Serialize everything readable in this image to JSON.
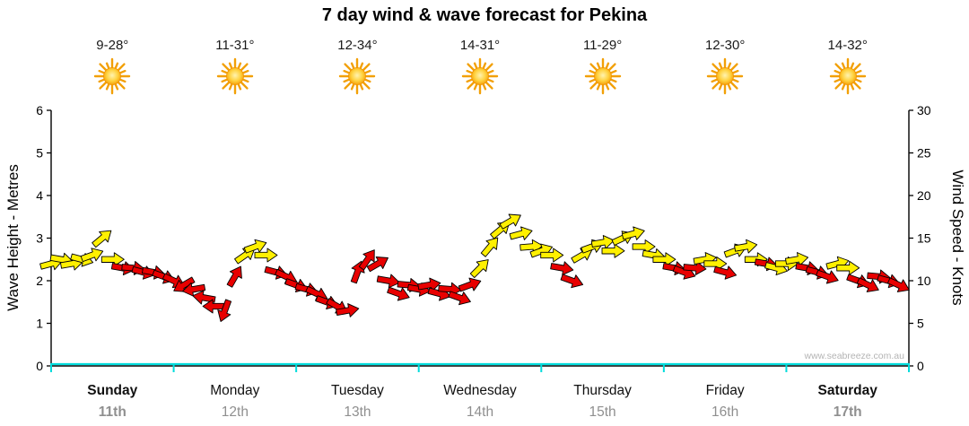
{
  "title": "7 day wind & wave forecast for Pekina",
  "watermark": "www.seabreeze.com.au",
  "days": [
    {
      "name": "Sunday",
      "date": "11th",
      "temp": "9-28°",
      "weekend": true
    },
    {
      "name": "Monday",
      "date": "12th",
      "temp": "11-31°",
      "weekend": false
    },
    {
      "name": "Tuesday",
      "date": "13th",
      "temp": "12-34°",
      "weekend": false
    },
    {
      "name": "Wednesday",
      "date": "14th",
      "temp": "14-31°",
      "weekend": false
    },
    {
      "name": "Thursday",
      "date": "15th",
      "temp": "11-29°",
      "weekend": false
    },
    {
      "name": "Friday",
      "date": "16th",
      "temp": "12-30°",
      "weekend": false
    },
    {
      "name": "Saturday",
      "date": "17th",
      "temp": "14-32°",
      "weekend": true
    }
  ],
  "colors": {
    "arrow_yellow": "#FFF000",
    "arrow_red": "#E80000",
    "arrow_outline": "#000000",
    "wave_line": "#00DCDC",
    "axis": "#000000",
    "date_text": "#8f8f8f",
    "watermark": "#b4b4b4",
    "sun_core": "#FFF3B0",
    "sun_mid": "#FFD23F",
    "sun_edge": "#F29400",
    "sun_ray": "#F2A007"
  },
  "chart_data": {
    "type": "scatter",
    "title": "7 day wind & wave forecast for Pekina",
    "subtitle": "wind arrows plotted against knots axis; colour = wind category (yellow/red); arrow rotation = wind direction",
    "left_axis": {
      "label": "Wave Height - Metres",
      "min": 0,
      "max": 6,
      "ticks": [
        0,
        1,
        2,
        3,
        4,
        5,
        6
      ]
    },
    "right_axis": {
      "label": "Wind Speed - Knots",
      "min": 0,
      "max": 30,
      "ticks": [
        0,
        5,
        10,
        15,
        20,
        25,
        30
      ]
    },
    "x_axis": {
      "unit": "hours",
      "range": [
        0,
        168
      ],
      "step_hours": 2,
      "day_labels": [
        "Sunday 11th",
        "Monday 12th",
        "Tuesday 13th",
        "Wednesday 14th",
        "Thursday 15th",
        "Friday 16th",
        "Saturday 17th"
      ]
    },
    "wave_height_m": 0,
    "grid": false,
    "legend": "none",
    "wind_points_format": [
      "t_hours",
      "knots",
      "dir_deg_cw_from_east",
      "color_y_or_r"
    ],
    "wind_points": [
      [
        0,
        12,
        -15,
        "y"
      ],
      [
        2,
        12.5,
        10,
        "y"
      ],
      [
        4,
        12,
        -10,
        "y"
      ],
      [
        6,
        12.5,
        15,
        "y"
      ],
      [
        8,
        13,
        -20,
        "y"
      ],
      [
        10,
        15,
        -40,
        "y"
      ],
      [
        12,
        12.5,
        0,
        "y"
      ],
      [
        14,
        11.5,
        10,
        "r"
      ],
      [
        16,
        11.5,
        5,
        "r"
      ],
      [
        18,
        11,
        15,
        "r"
      ],
      [
        20,
        11,
        10,
        "r"
      ],
      [
        22,
        10.5,
        20,
        "r"
      ],
      [
        24,
        10,
        25,
        "r"
      ],
      [
        26,
        9.5,
        150,
        "r"
      ],
      [
        28,
        9,
        170,
        "r"
      ],
      [
        30,
        8,
        190,
        "r"
      ],
      [
        32,
        7,
        180,
        "r"
      ],
      [
        34,
        6.5,
        110,
        "r"
      ],
      [
        36,
        10.5,
        -60,
        "r"
      ],
      [
        38,
        13,
        -35,
        "y"
      ],
      [
        40,
        14,
        -20,
        "y"
      ],
      [
        42,
        13,
        0,
        "y"
      ],
      [
        44,
        11,
        15,
        "r"
      ],
      [
        46,
        10.5,
        25,
        "r"
      ],
      [
        48,
        9.5,
        20,
        "r"
      ],
      [
        50,
        9,
        15,
        "r"
      ],
      [
        52,
        8.5,
        25,
        "r"
      ],
      [
        54,
        7.5,
        20,
        "r"
      ],
      [
        56,
        7,
        30,
        "r"
      ],
      [
        58,
        6.5,
        -10,
        "r"
      ],
      [
        60,
        11,
        -70,
        "r"
      ],
      [
        62,
        12.5,
        -55,
        "r"
      ],
      [
        64,
        12,
        -30,
        "r"
      ],
      [
        66,
        10,
        10,
        "r"
      ],
      [
        68,
        8.5,
        20,
        "r"
      ],
      [
        70,
        9.5,
        5,
        "r"
      ],
      [
        72,
        9,
        10,
        "r"
      ],
      [
        74,
        9.5,
        -10,
        "r"
      ],
      [
        76,
        8.5,
        15,
        "r"
      ],
      [
        78,
        9,
        5,
        "r"
      ],
      [
        80,
        8,
        20,
        "r"
      ],
      [
        82,
        9.5,
        -20,
        "r"
      ],
      [
        84,
        11.5,
        -45,
        "y"
      ],
      [
        86,
        14,
        -50,
        "y"
      ],
      [
        88,
        16,
        -40,
        "y"
      ],
      [
        90,
        17,
        -30,
        "y"
      ],
      [
        92,
        15.5,
        -15,
        "y"
      ],
      [
        94,
        14,
        -5,
        "y"
      ],
      [
        96,
        13.5,
        -20,
        "y"
      ],
      [
        98,
        13,
        0,
        "y"
      ],
      [
        100,
        11.5,
        10,
        "r"
      ],
      [
        102,
        10,
        20,
        "r"
      ],
      [
        104,
        13,
        -30,
        "y"
      ],
      [
        106,
        14,
        -20,
        "y"
      ],
      [
        108,
        14.5,
        -10,
        "y"
      ],
      [
        110,
        13.5,
        0,
        "y"
      ],
      [
        112,
        15,
        -25,
        "y"
      ],
      [
        114,
        15.5,
        -15,
        "y"
      ],
      [
        116,
        14,
        0,
        "y"
      ],
      [
        118,
        13,
        10,
        "y"
      ],
      [
        120,
        12.5,
        0,
        "y"
      ],
      [
        122,
        11.5,
        10,
        "r"
      ],
      [
        124,
        11,
        20,
        "r"
      ],
      [
        126,
        11.5,
        5,
        "r"
      ],
      [
        128,
        12.5,
        -10,
        "y"
      ],
      [
        130,
        12,
        0,
        "y"
      ],
      [
        132,
        11,
        15,
        "r"
      ],
      [
        134,
        13.5,
        -20,
        "y"
      ],
      [
        136,
        14,
        -10,
        "y"
      ],
      [
        138,
        12.5,
        0,
        "y"
      ],
      [
        140,
        12,
        10,
        "r"
      ],
      [
        142,
        11.5,
        15,
        "y"
      ],
      [
        144,
        12,
        0,
        "y"
      ],
      [
        146,
        12.5,
        -10,
        "y"
      ],
      [
        148,
        11.5,
        10,
        "r"
      ],
      [
        150,
        11,
        15,
        "r"
      ],
      [
        152,
        10.5,
        20,
        "r"
      ],
      [
        154,
        12,
        -15,
        "y"
      ],
      [
        156,
        11.5,
        0,
        "y"
      ],
      [
        158,
        10,
        20,
        "r"
      ],
      [
        160,
        9.5,
        25,
        "r"
      ],
      [
        162,
        10.5,
        5,
        "r"
      ],
      [
        164,
        10,
        15,
        "r"
      ],
      [
        166,
        9.5,
        25,
        "r"
      ]
    ]
  }
}
